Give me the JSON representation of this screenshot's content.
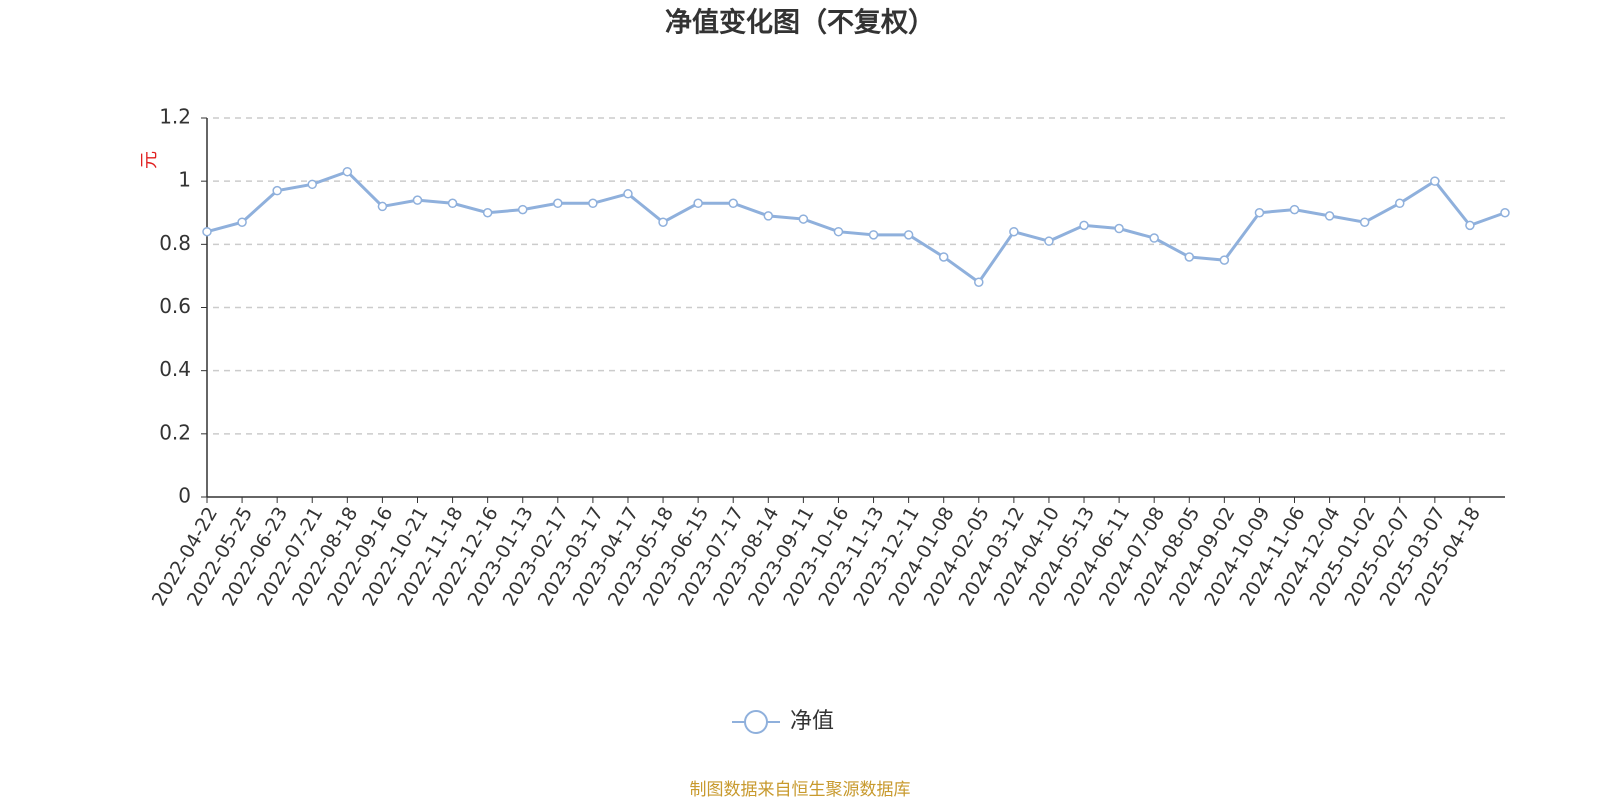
{
  "chart_data": {
    "type": "line",
    "title": "净值变化图（不复权）",
    "y_label": "元",
    "footer": "制图数据来自恒生聚源数据库",
    "categories": [
      "2022-04-22",
      "2022-05-25",
      "2022-06-23",
      "2022-07-21",
      "2022-08-18",
      "2022-09-16",
      "2022-10-21",
      "2022-11-18",
      "2022-12-16",
      "2023-01-13",
      "2023-02-17",
      "2023-03-17",
      "2023-04-17",
      "2023-05-18",
      "2023-06-15",
      "2023-07-17",
      "2023-08-14",
      "2023-09-11",
      "2023-10-16",
      "2023-11-13",
      "2023-12-11",
      "2024-01-08",
      "2024-02-05",
      "2024-03-12",
      "2024-04-10",
      "2024-05-13",
      "2024-06-11",
      "2024-07-08",
      "2024-08-05",
      "2024-09-02",
      "2024-10-09",
      "2024-11-06",
      "2024-12-04",
      "2025-01-02",
      "2025-02-07",
      "2025-03-07",
      "2025-04-18",
      null
    ],
    "series": [
      {
        "name": "净值",
        "color": "#8fb0dc",
        "values": [
          0.84,
          0.87,
          0.97,
          0.99,
          1.03,
          0.92,
          0.94,
          0.93,
          0.9,
          0.91,
          0.93,
          0.93,
          0.96,
          0.87,
          0.93,
          0.93,
          0.89,
          0.88,
          0.84,
          0.83,
          0.83,
          0.76,
          0.68,
          0.84,
          0.81,
          0.86,
          0.85,
          0.82,
          0.76,
          0.75,
          0.9,
          0.91,
          0.89,
          0.87,
          0.93,
          1.0,
          0.86,
          0.9
        ]
      }
    ],
    "ylim": [
      0,
      1.2
    ],
    "yticks": [
      0,
      0.2,
      0.4,
      0.6,
      0.8,
      1,
      1.2
    ],
    "grid": true,
    "legend": "bottom"
  }
}
